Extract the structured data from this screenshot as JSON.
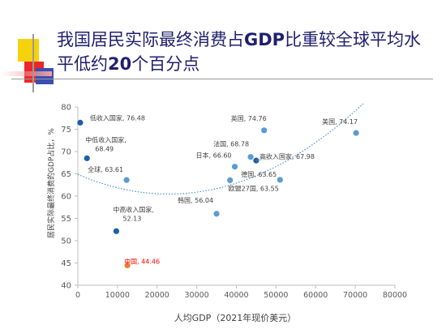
{
  "slide": {
    "title_parts": [
      "我国居民实际最终消费占",
      "GDP",
      "比重较全球平均水平低约",
      "20",
      "个百分点"
    ]
  },
  "chart_data": {
    "type": "scatter",
    "title": "",
    "xlabel": "人均GDP（2021年现价美元）",
    "ylabel": "居民实际最终消费的GDP占比，%",
    "xlim": [
      0,
      80000
    ],
    "ylim": [
      40,
      80
    ],
    "xticks": [
      0,
      10000,
      20000,
      30000,
      40000,
      50000,
      60000,
      70000,
      80000
    ],
    "yticks": [
      40,
      45,
      50,
      55,
      60,
      65,
      70,
      75,
      80
    ],
    "trendline": "dotted quadratic fit",
    "colors": {
      "group": "#1f5fa8",
      "country": "#5b9bd5",
      "china": "#ed7d31",
      "china_label": "#ff0000",
      "trend": "#4a8fd0",
      "axis": "#bfbfbf",
      "tick": "#595959"
    },
    "points": [
      {
        "label": "低收入国家, 76.48",
        "x": 600,
        "y": 76.48,
        "kind": "group"
      },
      {
        "label": "中低收入国家,\n68.49",
        "x": 2300,
        "y": 68.49,
        "kind": "group"
      },
      {
        "label": "中高收入国家,\n52.13",
        "x": 9700,
        "y": 52.13,
        "kind": "group"
      },
      {
        "label": "高收入国家, 67.98",
        "x": 45000,
        "y": 67.98,
        "kind": "group"
      },
      {
        "label": "全球, 63.61",
        "x": 12300,
        "y": 63.61,
        "kind": "country"
      },
      {
        "label": "中国, 44.46",
        "x": 12500,
        "y": 44.46,
        "kind": "china"
      },
      {
        "label": "韩国, 56.04",
        "x": 35000,
        "y": 56.04,
        "kind": "country"
      },
      {
        "label": "欧盟27国, 63.55",
        "x": 38400,
        "y": 63.55,
        "kind": "country"
      },
      {
        "label": "日本, 66.60",
        "x": 39600,
        "y": 66.6,
        "kind": "country"
      },
      {
        "label": "法国, 68.78",
        "x": 43600,
        "y": 68.78,
        "kind": "country"
      },
      {
        "label": "英国, 74.76",
        "x": 47000,
        "y": 74.76,
        "kind": "country"
      },
      {
        "label": "德国, 63.65",
        "x": 51000,
        "y": 63.65,
        "kind": "country"
      },
      {
        "label": "美国, 74.17",
        "x": 70200,
        "y": 74.17,
        "kind": "country"
      }
    ]
  }
}
